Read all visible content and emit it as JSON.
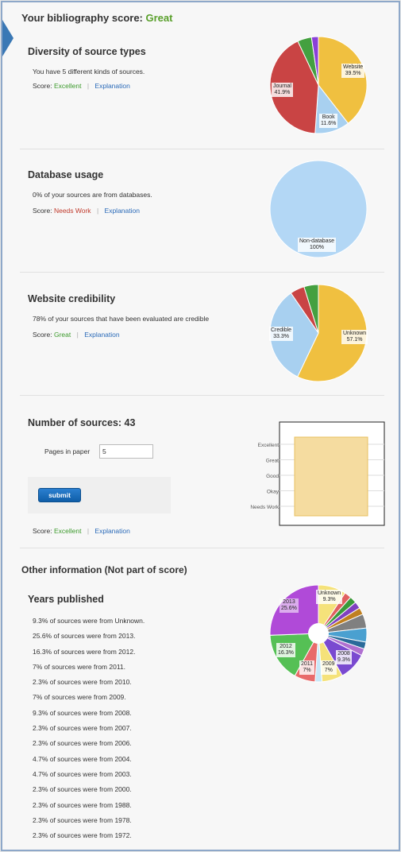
{
  "header": {
    "title_prefix": "Your bibliography score:",
    "title_value": "Great"
  },
  "diversity": {
    "title": "Diversity of source types",
    "description": "You have 5 different kinds of sources.",
    "score_label": "Score:",
    "score_value": "Excellent",
    "explanation": "Explanation",
    "chart_data": {
      "type": "pie",
      "slices": [
        {
          "label": "Website",
          "value": 39.5,
          "color": "#f0c040"
        },
        {
          "label": "Book",
          "value": 11.6,
          "color": "#a8d0f0"
        },
        {
          "label": "Journal",
          "value": 41.9,
          "color": "#c94444"
        },
        {
          "label": "",
          "value": 4.7,
          "color": "#44a040"
        },
        {
          "label": "",
          "value": 2.3,
          "color": "#8a40d8"
        }
      ],
      "printed_labels": {
        "website": "Website\n39.5%",
        "book": "Book\n11.6%",
        "journal": "Journal\n41.9%"
      }
    }
  },
  "database": {
    "title": "Database usage",
    "description": "0% of your sources are from databases.",
    "score_label": "Score:",
    "score_value": "Needs Work",
    "explanation": "Explanation",
    "chart_data": {
      "type": "pie",
      "slices": [
        {
          "label": "Non-database",
          "value": 100,
          "color": "#b3d7f5"
        }
      ],
      "printed_labels": {
        "nondb": "Non-database\n100%"
      }
    }
  },
  "credibility": {
    "title": "Website credibility",
    "description": "78% of your sources that have been evaluated are credible",
    "score_label": "Score:",
    "score_value": "Great",
    "explanation": "Explanation",
    "chart_data": {
      "type": "pie",
      "slices": [
        {
          "label": "Unknown",
          "value": 57.1,
          "color": "#f0c040"
        },
        {
          "label": "Credible",
          "value": 33.3,
          "color": "#a8d0f0"
        },
        {
          "label": "",
          "value": 4.8,
          "color": "#c94444"
        },
        {
          "label": "",
          "value": 4.8,
          "color": "#44a040"
        }
      ],
      "printed_labels": {
        "unknown": "Unknown\n57.1%",
        "credible": "Credible\n33.3%"
      }
    }
  },
  "sources": {
    "title": "Number of sources: 43",
    "pages_label": "Pages in paper",
    "pages_value": "5",
    "submit_label": "submit",
    "score_label": "Score:",
    "score_value": "Excellent",
    "explanation": "Explanation",
    "chart_data": {
      "type": "bar",
      "categories": [
        "Excellent",
        "Great",
        "Good",
        "Okay",
        "Needs Work"
      ],
      "level": "Excellent",
      "bar_color": "#f5dca0",
      "bar_border": "#e8c060"
    }
  },
  "other": {
    "title": "Other information (Not part of score)",
    "years_title": "Years published",
    "years": [
      "9.3% of sources were from Unknown.",
      "25.6% of sources were from 2013.",
      "16.3% of sources were from 2012.",
      "7% of sources were from 2011.",
      "2.3% of sources were from 2010.",
      "7% of sources were from 2009.",
      "9.3% of sources were from 2008.",
      "2.3% of sources were from 2007.",
      "2.3% of sources were from 2006.",
      "4.7% of sources were from 2004.",
      "4.7% of sources were from 2003.",
      "2.3% of sources were from 2000.",
      "2.3% of sources were from 1988.",
      "2.3% of sources were from 1978.",
      "2.3% of sources were from 1972."
    ],
    "chart_data": {
      "type": "pie",
      "donut": true,
      "slices": [
        {
          "label": "Unknown",
          "value": 9.3,
          "color": "#f5e27a"
        },
        {
          "label": "",
          "value": 2.3,
          "color": "#e06060"
        },
        {
          "label": "",
          "value": 2.3,
          "color": "#3a9a3a"
        },
        {
          "label": "",
          "value": 2.3,
          "color": "#8040c0"
        },
        {
          "label": "",
          "value": 2.3,
          "color": "#c08020"
        },
        {
          "label": "",
          "value": 4.7,
          "color": "#808080"
        },
        {
          "label": "",
          "value": 4.7,
          "color": "#4aa0d0"
        },
        {
          "label": "",
          "value": 2.3,
          "color": "#2a6a9a"
        },
        {
          "label": "",
          "value": 2.3,
          "color": "#b070d0"
        },
        {
          "label": "2008",
          "value": 9.3,
          "color": "#7a4ad0"
        },
        {
          "label": "2009",
          "value": 7.0,
          "color": "#f5e27a"
        },
        {
          "label": "",
          "value": 2.3,
          "color": "#c8e8f8"
        },
        {
          "label": "2011",
          "value": 7.0,
          "color": "#e86a6a"
        },
        {
          "label": "2012",
          "value": 16.3,
          "color": "#55c055"
        },
        {
          "label": "2013",
          "value": 25.6,
          "color": "#b04ad8"
        }
      ],
      "printed_labels": {
        "unknown": "Unknown\n9.3%",
        "y2013": "2013\n25.6%",
        "y2012": "2012\n16.3%",
        "y2011": "2011\n7%",
        "y2009": "2009\n7%",
        "y2008": "2008\n9.3%"
      }
    }
  }
}
